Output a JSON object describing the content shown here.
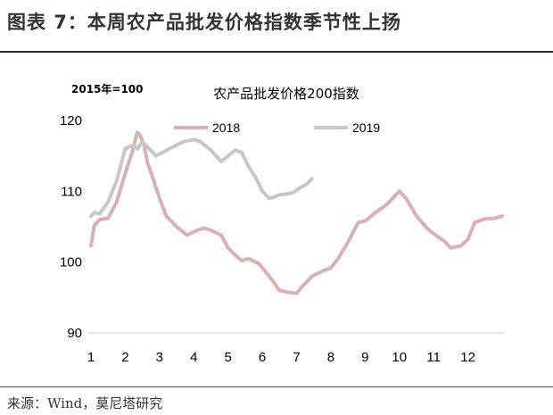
{
  "header": {
    "title": "图表 7：本周农产品批发价格指数季节性上扬"
  },
  "footer": {
    "source": "来源：Wind，莫尼塔研究"
  },
  "chart_data": {
    "type": "line",
    "title": "农产品批发价格200指数",
    "unit_label": "2015年=100",
    "xlabel": "",
    "ylabel": "",
    "xlim": [
      1,
      13
    ],
    "ylim": [
      90,
      120
    ],
    "yticks": [
      90,
      100,
      110,
      120
    ],
    "xticks": [
      {
        "value": 1,
        "label": "1"
      },
      {
        "value": 2,
        "label": "2"
      },
      {
        "value": 3,
        "label": "3"
      },
      {
        "value": 4,
        "label": "4"
      },
      {
        "value": 5,
        "label": "5"
      },
      {
        "value": 6,
        "label": "6"
      },
      {
        "value": 7,
        "label": "7"
      },
      {
        "value": 8,
        "label": "8"
      },
      {
        "value": 9,
        "label": "9"
      },
      {
        "value": 10,
        "label": "10"
      },
      {
        "value": 11,
        "label": "11"
      },
      {
        "value": 12,
        "label": "12"
      }
    ],
    "grid": false,
    "legend_position": "top",
    "series": [
      {
        "name": "2018",
        "color": "#d9b0b3",
        "x": [
          1.0,
          1.1,
          1.25,
          1.5,
          1.75,
          2.0,
          2.2,
          2.35,
          2.45,
          2.55,
          2.65,
          2.8,
          3.0,
          3.2,
          3.5,
          3.8,
          4.1,
          4.3,
          4.5,
          4.8,
          5.0,
          5.2,
          5.4,
          5.6,
          5.9,
          6.2,
          6.5,
          6.8,
          7.0,
          7.15,
          7.3,
          7.45,
          7.7,
          8.0,
          8.2,
          8.5,
          8.8,
          9.0,
          9.3,
          9.6,
          9.8,
          10.0,
          10.2,
          10.5,
          10.8,
          11.0,
          11.3,
          11.5,
          11.8,
          12.0,
          12.2,
          12.5,
          12.8,
          13.0
        ],
        "values": [
          102.3,
          105.2,
          106.0,
          106.2,
          108.5,
          112.5,
          115.5,
          118.3,
          117.8,
          116.5,
          114.0,
          112.0,
          109.0,
          106.5,
          105.0,
          103.8,
          104.5,
          104.8,
          104.5,
          103.8,
          102.0,
          101.0,
          100.2,
          100.5,
          99.8,
          98.0,
          96.0,
          95.7,
          95.6,
          96.5,
          97.2,
          98.0,
          98.6,
          99.2,
          100.4,
          102.8,
          105.6,
          105.8,
          107.0,
          108.0,
          109.0,
          110.0,
          109.0,
          106.5,
          104.8,
          104.0,
          103.0,
          102.0,
          102.3,
          103.2,
          105.6,
          106.1,
          106.2,
          106.5
        ]
      },
      {
        "name": "2019",
        "color": "#c7c7c7",
        "x": [
          1.0,
          1.1,
          1.25,
          1.5,
          1.75,
          2.0,
          2.2,
          2.35,
          2.5,
          2.7,
          2.9,
          3.1,
          3.4,
          3.7,
          4.0,
          4.2,
          4.5,
          4.8,
          5.0,
          5.2,
          5.4,
          5.6,
          5.8,
          6.0,
          6.2,
          6.35,
          6.5,
          6.7,
          6.9,
          7.1,
          7.3,
          7.45
        ],
        "values": [
          106.5,
          107.0,
          106.8,
          108.5,
          111.5,
          116.0,
          116.5,
          116.0,
          117.0,
          116.0,
          115.0,
          115.5,
          116.3,
          117.0,
          117.3,
          117.0,
          115.8,
          114.2,
          115.0,
          115.8,
          115.5,
          113.5,
          112.0,
          110.0,
          109.0,
          109.2,
          109.5,
          109.6,
          109.8,
          110.5,
          111.0,
          111.8
        ]
      }
    ]
  }
}
